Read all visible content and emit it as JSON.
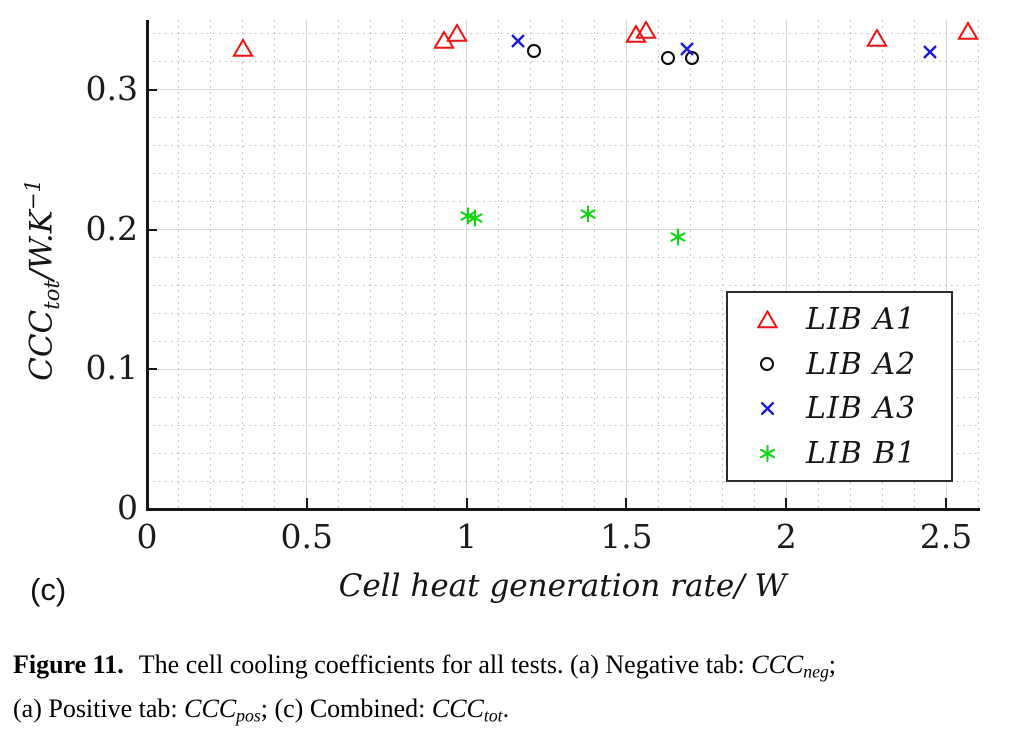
{
  "panel_label": "(c)",
  "chart_data": {
    "type": "scatter",
    "title": "",
    "xlabel": "Cell heat generation rate/ W",
    "ylabel": "CCC_tot/W.K^-1",
    "ylabel_parts": {
      "main": "CCC",
      "sub": "tot",
      "rest": "/W.K",
      "sup": "−1"
    },
    "xlim": [
      0,
      2.6
    ],
    "ylim": [
      0,
      0.35
    ],
    "x_ticks": [
      0,
      0.5,
      1,
      1.5,
      2,
      2.5
    ],
    "x_tick_labels": [
      "0",
      "0.5",
      "1",
      "1.5",
      "2",
      "2.5"
    ],
    "y_ticks": [
      0,
      0.1,
      0.2,
      0.3
    ],
    "y_tick_labels": [
      "0",
      "0.1",
      "0.2",
      "0.3"
    ],
    "x_minor_step": 0.1,
    "y_minor_step": 0.02,
    "grid": "major solid light gray, minor dotted",
    "legend_position": "lower right inside",
    "series": [
      {
        "name": "LIB A1",
        "marker": "triangle",
        "color": "#ef1010",
        "points": [
          [
            0.3,
            0.33
          ],
          [
            0.93,
            0.336
          ],
          [
            0.97,
            0.341
          ],
          [
            1.53,
            0.34
          ],
          [
            1.56,
            0.343
          ],
          [
            2.285,
            0.337
          ],
          [
            2.57,
            0.342
          ]
        ]
      },
      {
        "name": "LIB A2",
        "marker": "circle",
        "color": "#0a0a0a",
        "points": [
          [
            1.21,
            0.328
          ],
          [
            1.63,
            0.323
          ],
          [
            1.705,
            0.323
          ]
        ]
      },
      {
        "name": "LIB A3",
        "marker": "cross",
        "color": "#1c1cdb",
        "points": [
          [
            1.16,
            0.335
          ],
          [
            1.69,
            0.329
          ],
          [
            2.45,
            0.327
          ]
        ]
      },
      {
        "name": "LIB B1",
        "marker": "asterisk",
        "color": "#12d412",
        "points": [
          [
            1.005,
            0.2095
          ],
          [
            1.025,
            0.208
          ],
          [
            1.38,
            0.211
          ],
          [
            1.66,
            0.195
          ]
        ]
      }
    ]
  },
  "caption": {
    "segments": [
      {
        "text": "Figure 11."
      },
      {
        "text": " The cell cooling coefficients for all tests. (a) Negative tab: "
      },
      {
        "text": "CCC"
      },
      {
        "text": "neg"
      },
      {
        "text": ";"
      },
      {
        "text": "(a) Positive tab: "
      },
      {
        "text": "CCC"
      },
      {
        "text": "pos"
      },
      {
        "text": "; (c) Combined: "
      },
      {
        "text": "CCC"
      },
      {
        "text": "tot"
      },
      {
        "text": "."
      }
    ]
  }
}
